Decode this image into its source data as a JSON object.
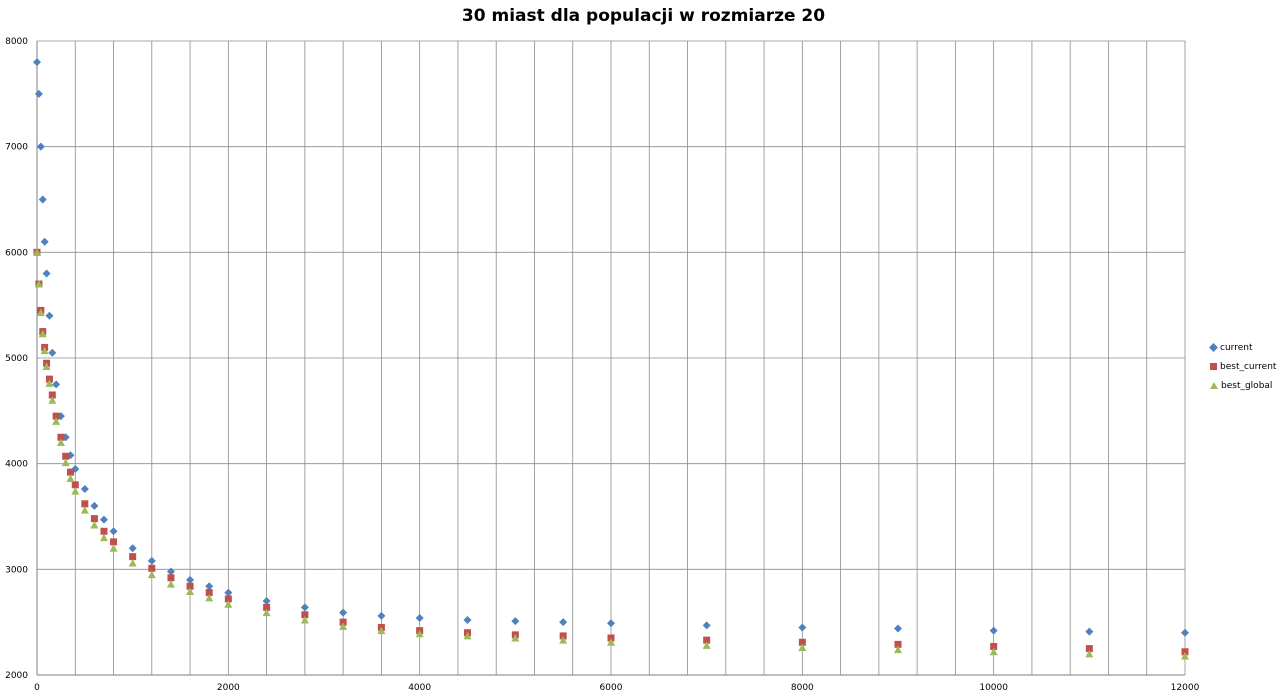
{
  "chart_data": {
    "type": "scatter",
    "title": "30 miast dla populacji w  rozmiarze 20",
    "xlabel": "",
    "ylabel": "",
    "xlim": [
      0,
      12000
    ],
    "ylim": [
      2000,
      8000
    ],
    "x_ticks": [
      0,
      2000,
      4000,
      6000,
      8000,
      10000,
      12000
    ],
    "x_tick_labels": [
      "0",
      "2000",
      "4000",
      "6000",
      "8000",
      "10000",
      "12000"
    ],
    "y_ticks": [
      2000,
      3000,
      4000,
      5000,
      6000,
      7000,
      8000
    ],
    "y_tick_labels": [
      "2000",
      "3000",
      "4000",
      "5000",
      "6000",
      "7000",
      "8000"
    ],
    "x_gridline_step": 400,
    "grid": true,
    "legend_position": "right",
    "series": [
      {
        "name": "current",
        "color": "#4f81bd",
        "marker": "diamond",
        "x": [
          0,
          20,
          40,
          60,
          80,
          100,
          130,
          160,
          200,
          250,
          300,
          350,
          400,
          500,
          600,
          700,
          800,
          1000,
          1200,
          1400,
          1600,
          1800,
          2000,
          2400,
          2800,
          3200,
          3600,
          4000,
          4500,
          5000,
          5500,
          6000,
          7000,
          8000,
          9000,
          10000,
          11000,
          12000
        ],
        "y": [
          7800,
          7500,
          7000,
          6500,
          6100,
          5800,
          5400,
          5050,
          4750,
          4450,
          4250,
          4080,
          3950,
          3760,
          3600,
          3470,
          3360,
          3200,
          3080,
          2980,
          2900,
          2840,
          2780,
          2700,
          2640,
          2590,
          2560,
          2540,
          2520,
          2510,
          2500,
          2490,
          2470,
          2450,
          2440,
          2420,
          2410,
          2400
        ]
      },
      {
        "name": "best_current",
        "color": "#c0504d",
        "marker": "square",
        "x": [
          0,
          20,
          40,
          60,
          80,
          100,
          130,
          160,
          200,
          250,
          300,
          350,
          400,
          500,
          600,
          700,
          800,
          1000,
          1200,
          1400,
          1600,
          1800,
          2000,
          2400,
          2800,
          3200,
          3600,
          4000,
          4500,
          5000,
          5500,
          6000,
          7000,
          8000,
          9000,
          10000,
          11000,
          12000
        ],
        "y": [
          6000,
          5700,
          5450,
          5250,
          5100,
          4950,
          4800,
          4650,
          4450,
          4250,
          4070,
          3920,
          3800,
          3620,
          3480,
          3360,
          3260,
          3120,
          3010,
          2920,
          2840,
          2780,
          2720,
          2640,
          2570,
          2500,
          2450,
          2420,
          2400,
          2380,
          2370,
          2350,
          2330,
          2310,
          2290,
          2270,
          2250,
          2220
        ]
      },
      {
        "name": "best_global",
        "color": "#9bbb59",
        "marker": "triangle",
        "x": [
          0,
          20,
          40,
          60,
          80,
          100,
          130,
          160,
          200,
          250,
          300,
          350,
          400,
          500,
          600,
          700,
          800,
          1000,
          1200,
          1400,
          1600,
          1800,
          2000,
          2400,
          2800,
          3200,
          3600,
          4000,
          4500,
          5000,
          5500,
          6000,
          7000,
          8000,
          9000,
          10000,
          11000,
          12000
        ],
        "y": [
          6000,
          5700,
          5430,
          5230,
          5070,
          4920,
          4760,
          4600,
          4400,
          4200,
          4010,
          3860,
          3740,
          3560,
          3420,
          3300,
          3200,
          3060,
          2950,
          2860,
          2790,
          2730,
          2670,
          2590,
          2520,
          2460,
          2420,
          2390,
          2370,
          2350,
          2330,
          2310,
          2280,
          2260,
          2240,
          2220,
          2200,
          2180
        ]
      }
    ]
  }
}
